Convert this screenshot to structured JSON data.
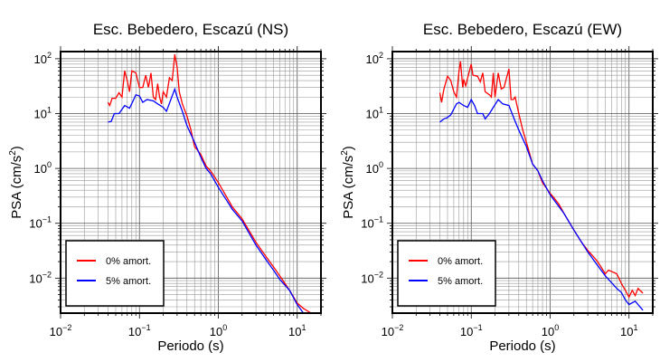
{
  "chart_data": [
    {
      "type": "line",
      "title": "Esc. Bebedero, Escazú (NS)",
      "xlabel": "Periodo (s)",
      "ylabel": {
        "main": "PSA (cm/s",
        "sup": "2",
        "end": ")"
      },
      "xscale": "log",
      "yscale": "log",
      "xlim": [
        0.01,
        20
      ],
      "ylim": [
        0.0023,
        135
      ],
      "grid": true,
      "legend_position": "bottom-left",
      "x_ticks": [
        {
          "base": "10",
          "exp": "−2",
          "value": 0.01
        },
        {
          "base": "10",
          "exp": "−1",
          "value": 0.1
        },
        {
          "base": "10",
          "exp": "0",
          "value": 1
        },
        {
          "base": "10",
          "exp": "1",
          "value": 10
        }
      ],
      "y_ticks": [
        {
          "base": "10",
          "exp": "2",
          "value": 100
        },
        {
          "base": "10",
          "exp": "1",
          "value": 10
        },
        {
          "base": "10",
          "exp": "0",
          "value": 1
        },
        {
          "base": "10",
          "exp": "−1",
          "value": 0.1
        },
        {
          "base": "10",
          "exp": "−2",
          "value": 0.01
        }
      ],
      "series": [
        {
          "name": "0% amort.",
          "color": "#ff0000",
          "x": [
            0.04,
            0.042,
            0.045,
            0.05,
            0.055,
            0.06,
            0.065,
            0.07,
            0.075,
            0.08,
            0.09,
            0.1,
            0.11,
            0.12,
            0.13,
            0.14,
            0.15,
            0.16,
            0.17,
            0.18,
            0.19,
            0.2,
            0.22,
            0.24,
            0.26,
            0.28,
            0.3,
            0.32,
            0.35,
            0.4,
            0.45,
            0.5,
            0.6,
            0.7,
            0.8,
            1,
            1.2,
            1.5,
            2,
            3,
            4,
            5,
            6,
            7,
            8,
            10,
            12,
            15
          ],
          "y": [
            16,
            14,
            19,
            19,
            24,
            20,
            60,
            40,
            25,
            60,
            55,
            30,
            30,
            50,
            30,
            55,
            20,
            18,
            35,
            20,
            15,
            25,
            20,
            45,
            40,
            120,
            70,
            25,
            15,
            9,
            5,
            2.5,
            1.8,
            1.1,
            0.9,
            0.55,
            0.35,
            0.2,
            0.12,
            0.045,
            0.025,
            0.016,
            0.011,
            0.008,
            0.006,
            0.0035,
            0.0028,
            0.0023
          ]
        },
        {
          "name": "5% amort.",
          "color": "#0000ff",
          "x": [
            0.04,
            0.044,
            0.048,
            0.055,
            0.065,
            0.075,
            0.09,
            0.1,
            0.11,
            0.125,
            0.15,
            0.17,
            0.2,
            0.22,
            0.28,
            0.3,
            0.35,
            0.4,
            0.5,
            0.6,
            0.7,
            0.8,
            1,
            1.2,
            1.5,
            2,
            3,
            4,
            5,
            6,
            8,
            10,
            12
          ],
          "y": [
            7,
            7.2,
            10,
            10,
            14,
            12.5,
            22,
            21,
            16,
            18,
            17,
            15,
            13,
            11,
            28,
            20,
            11,
            6,
            3,
            1.6,
            1,
            0.8,
            0.45,
            0.3,
            0.18,
            0.11,
            0.04,
            0.022,
            0.014,
            0.0095,
            0.006,
            0.0033,
            0.0023
          ]
        }
      ]
    },
    {
      "type": "line",
      "title": "Esc. Bebedero, Escazú (EW)",
      "xlabel": "Periodo (s)",
      "ylabel": {
        "main": "PSA (cm/s",
        "sup": "2",
        "end": ")"
      },
      "xscale": "log",
      "yscale": "log",
      "xlim": [
        0.01,
        20
      ],
      "ylim": [
        0.0023,
        135
      ],
      "grid": true,
      "legend_position": "bottom-left",
      "x_ticks": [
        {
          "base": "10",
          "exp": "−2",
          "value": 0.01
        },
        {
          "base": "10",
          "exp": "−1",
          "value": 0.1
        },
        {
          "base": "10",
          "exp": "0",
          "value": 1
        },
        {
          "base": "10",
          "exp": "1",
          "value": 10
        }
      ],
      "y_ticks": [
        {
          "base": "10",
          "exp": "2",
          "value": 100
        },
        {
          "base": "10",
          "exp": "1",
          "value": 10
        },
        {
          "base": "10",
          "exp": "0",
          "value": 1
        },
        {
          "base": "10",
          "exp": "−1",
          "value": 0.1
        },
        {
          "base": "10",
          "exp": "−2",
          "value": 0.01
        }
      ],
      "series": [
        {
          "name": "0% amort.",
          "color": "#ff0000",
          "x": [
            0.04,
            0.042,
            0.045,
            0.05,
            0.055,
            0.06,
            0.065,
            0.07,
            0.073,
            0.078,
            0.08,
            0.085,
            0.09,
            0.1,
            0.105,
            0.12,
            0.13,
            0.14,
            0.15,
            0.17,
            0.18,
            0.19,
            0.2,
            0.22,
            0.24,
            0.26,
            0.3,
            0.32,
            0.34,
            0.36,
            0.4,
            0.45,
            0.5,
            0.6,
            0.7,
            0.8,
            1,
            1.1,
            1.3,
            1.5,
            2,
            2.5,
            3,
            3.5,
            4,
            5,
            5.5,
            7,
            8,
            9,
            10,
            11,
            12,
            13,
            15
          ],
          "y": [
            24,
            16,
            28,
            48,
            40,
            25,
            20,
            60,
            90,
            30,
            42,
            32,
            45,
            80,
            50,
            48,
            38,
            55,
            25,
            22,
            20,
            55,
            20,
            55,
            28,
            30,
            65,
            18,
            18,
            20,
            10,
            5,
            3,
            1.2,
            0.9,
            0.55,
            0.35,
            0.3,
            0.22,
            0.15,
            0.075,
            0.045,
            0.032,
            0.025,
            0.02,
            0.012,
            0.014,
            0.012,
            0.008,
            0.006,
            0.0045,
            0.006,
            0.0048,
            0.0065,
            0.0053
          ]
        },
        {
          "name": "5% amort.",
          "color": "#0000ff",
          "x": [
            0.04,
            0.045,
            0.05,
            0.055,
            0.065,
            0.07,
            0.08,
            0.09,
            0.1,
            0.11,
            0.12,
            0.14,
            0.15,
            0.17,
            0.19,
            0.22,
            0.25,
            0.3,
            0.35,
            0.4,
            0.5,
            0.6,
            0.7,
            0.8,
            1,
            1.5,
            2,
            3,
            4,
            5,
            7,
            8,
            9,
            10,
            12,
            13,
            15
          ],
          "y": [
            7,
            8,
            8.5,
            9.5,
            15,
            16,
            14,
            13,
            18,
            14,
            10,
            10,
            8,
            10,
            13,
            18,
            15,
            14,
            8,
            5,
            2.5,
            1.2,
            0.9,
            0.6,
            0.33,
            0.15,
            0.075,
            0.03,
            0.017,
            0.011,
            0.0065,
            0.0055,
            0.004,
            0.0033,
            0.0038,
            0.0033,
            0.0026
          ]
        }
      ]
    }
  ]
}
